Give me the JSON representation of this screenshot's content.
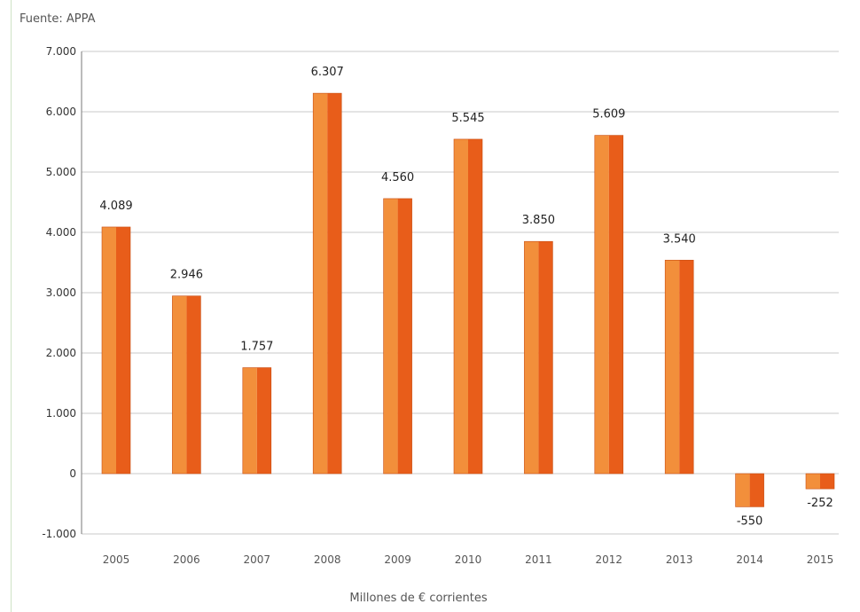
{
  "source": "Fuente: APPA",
  "chart_data": {
    "type": "bar",
    "title": "",
    "xlabel": "Millones de € corrientes",
    "ylabel": "",
    "categories": [
      "2005",
      "2006",
      "2007",
      "2008",
      "2009",
      "2010",
      "2011",
      "2012",
      "2013",
      "2014",
      "2015"
    ],
    "values": [
      4089,
      2946,
      1757,
      6307,
      4560,
      5545,
      3850,
      5609,
      3540,
      -550,
      -252
    ],
    "value_labels": [
      "4.089",
      "2.946",
      "1.757",
      "6.307",
      "4.560",
      "5.545",
      "3.850",
      "5.609",
      "3.540",
      "-550",
      "-252"
    ],
    "ylim": [
      -1000,
      7000
    ],
    "yticks": [
      -1000,
      0,
      1000,
      2000,
      3000,
      4000,
      5000,
      6000,
      7000
    ],
    "ytick_labels": [
      "-1.000",
      "0",
      "1.000",
      "2.000",
      "3.000",
      "4.000",
      "5.000",
      "6.000",
      "7.000"
    ],
    "grid": true,
    "colors": {
      "bar_light": "#f28f3b",
      "bar_dark": "#e85d1a",
      "grid": "#c8c8c8",
      "axis": "#7a7a7a"
    }
  }
}
